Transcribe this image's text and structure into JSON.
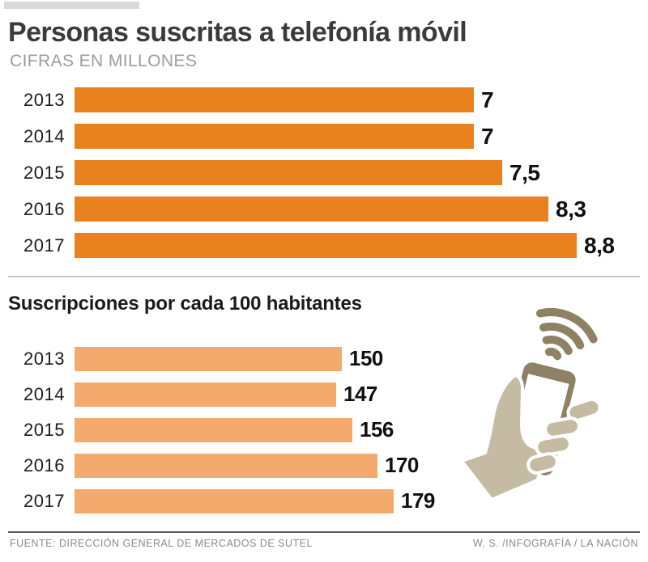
{
  "page": {
    "title": "Personas suscritas a telefonía móvil",
    "subtitle": "CIFRAS EN MILLONES",
    "section2_title": "Suscripciones por cada 100 habitantes",
    "footer_left": "FUENTE: DIRECCIÓN GENERAL DE MERCADOS DE SUTEL",
    "footer_right": "W. S. /INFOGRAFÍA / LA NACIÓN"
  },
  "colors": {
    "bar_dark_orange": "#E8821F",
    "bar_light_orange": "#F4A96D",
    "title_dark": "#3B3B3B",
    "subtitle_gray": "#9C9C9C",
    "footer_gray": "#8A8A8A",
    "accent_bar_gray": "#D9D9D9",
    "icon_hand_tan": "#C5BBA2",
    "icon_phone_brown": "#8E8164"
  },
  "icon": {
    "name": "hand-holding-phone-with-signal-waves"
  },
  "chart_data": [
    {
      "type": "bar",
      "orientation": "horizontal",
      "title": "Personas suscritas a telefonía móvil",
      "subtitle": "CIFRAS EN MILLONES",
      "categories": [
        "2013",
        "2014",
        "2015",
        "2016",
        "2017"
      ],
      "values": [
        7,
        7,
        7.5,
        8.3,
        8.8
      ],
      "value_labels": [
        "7",
        "7",
        "7,5",
        "8,3",
        "8,8"
      ],
      "xlim": [
        0,
        8.8
      ],
      "bar_color": "#E8821F",
      "grid": false,
      "legend": "none",
      "value_label_position": "right-of-bar"
    },
    {
      "type": "bar",
      "orientation": "horizontal",
      "title": "Suscripciones por cada 100 habitantes",
      "categories": [
        "2013",
        "2014",
        "2015",
        "2016",
        "2017"
      ],
      "values": [
        150,
        147,
        156,
        170,
        179
      ],
      "value_labels": [
        "150",
        "147",
        "156",
        "170",
        "179"
      ],
      "xlim": [
        0,
        179
      ],
      "bar_color": "#F4A96D",
      "grid": false,
      "legend": "none",
      "value_label_position": "right-of-bar"
    }
  ]
}
